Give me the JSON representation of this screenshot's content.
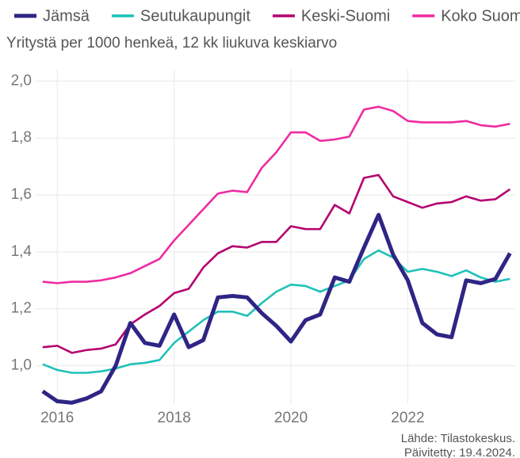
{
  "chart_data": {
    "type": "line",
    "subtitle": "Yritystä per 1000 henkeä, 12 kk liukuva keskiarvo",
    "source": [
      "Lähde: Tilastokeskus.",
      "Päivitetty: 19.4.2024."
    ],
    "x": [
      2015.75,
      2016,
      2016.25,
      2016.5,
      2016.75,
      2017,
      2017.25,
      2017.5,
      2017.75,
      2018,
      2018.25,
      2018.5,
      2018.75,
      2019,
      2019.25,
      2019.5,
      2019.75,
      2020,
      2020.25,
      2020.5,
      2020.75,
      2021,
      2021.25,
      2021.5,
      2021.75,
      2022,
      2022.25,
      2022.5,
      2022.75,
      2023,
      2023.25,
      2023.5,
      2023.75
    ],
    "series": [
      {
        "name": "Jämsä",
        "color": "#2e2585",
        "values": [
          0.91,
          0.875,
          0.87,
          0.885,
          0.91,
          1.0,
          1.15,
          1.08,
          1.07,
          1.18,
          1.065,
          1.09,
          1.24,
          1.245,
          1.24,
          1.185,
          1.14,
          1.085,
          1.16,
          1.18,
          1.31,
          1.295,
          1.415,
          1.53,
          1.39,
          1.3,
          1.15,
          1.11,
          1.1,
          1.3,
          1.29,
          1.305,
          1.395
        ]
      },
      {
        "name": "Seutukaupungit",
        "color": "#1fc1b8",
        "values": [
          1.005,
          0.985,
          0.975,
          0.975,
          0.98,
          0.99,
          1.005,
          1.01,
          1.02,
          1.08,
          1.12,
          1.16,
          1.19,
          1.19,
          1.175,
          1.22,
          1.26,
          1.285,
          1.28,
          1.26,
          1.28,
          1.3,
          1.375,
          1.405,
          1.38,
          1.33,
          1.34,
          1.33,
          1.315,
          1.335,
          1.31,
          1.295,
          1.305
        ]
      },
      {
        "name": "Keski-Suomi",
        "color": "#b5006f",
        "values": [
          1.065,
          1.07,
          1.045,
          1.055,
          1.06,
          1.075,
          1.145,
          1.18,
          1.21,
          1.255,
          1.27,
          1.345,
          1.395,
          1.42,
          1.415,
          1.435,
          1.435,
          1.49,
          1.48,
          1.48,
          1.565,
          1.535,
          1.66,
          1.67,
          1.595,
          1.575,
          1.555,
          1.57,
          1.575,
          1.595,
          1.58,
          1.585,
          1.62
        ]
      },
      {
        "name": "Koko Suomi",
        "color": "#ef2ba0",
        "values": [
          1.295,
          1.29,
          1.295,
          1.295,
          1.3,
          1.31,
          1.325,
          1.35,
          1.375,
          1.44,
          1.495,
          1.55,
          1.605,
          1.615,
          1.61,
          1.695,
          1.75,
          1.82,
          1.82,
          1.79,
          1.795,
          1.805,
          1.9,
          1.91,
          1.895,
          1.86,
          1.855,
          1.855,
          1.855,
          1.86,
          1.845,
          1.84,
          1.85
        ]
      }
    ],
    "xlim": [
      2015.63,
      2023.84
    ],
    "xticks": [
      2016,
      2018,
      2020,
      2022
    ],
    "ylim": [
      0.865,
      2.04
    ],
    "yticks": [
      {
        "value": 1.0,
        "label": "1,0"
      },
      {
        "value": 1.2,
        "label": "1,2"
      },
      {
        "value": 1.4,
        "label": "1,4"
      },
      {
        "value": 1.6,
        "label": "1,6"
      },
      {
        "value": 1.8,
        "label": "1,8"
      },
      {
        "value": 2.0,
        "label": "2,0"
      }
    ],
    "grid": true,
    "legend": "top"
  }
}
